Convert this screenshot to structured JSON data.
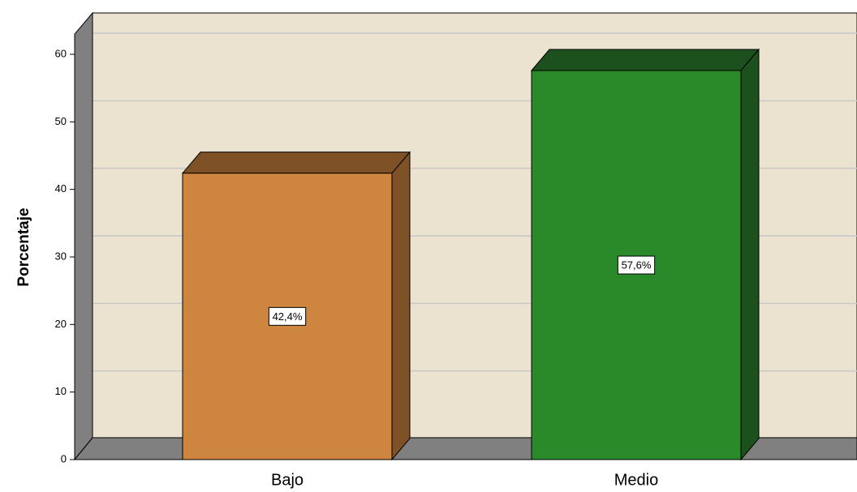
{
  "chart_data": {
    "type": "bar3d",
    "y_label": "Porcentaje",
    "categories": [
      "Bajo",
      "Medio"
    ],
    "values": [
      42.4,
      57.6
    ],
    "value_labels": [
      "42,4%",
      "57,6%"
    ],
    "colors": [
      "#cd853f",
      "#2a8a2a"
    ],
    "shade_colors": [
      "#7f5127",
      "#1c501c"
    ],
    "ylim": [
      0,
      63
    ],
    "yticks": [
      0,
      10,
      20,
      30,
      40,
      50,
      60
    ],
    "grid": true
  }
}
